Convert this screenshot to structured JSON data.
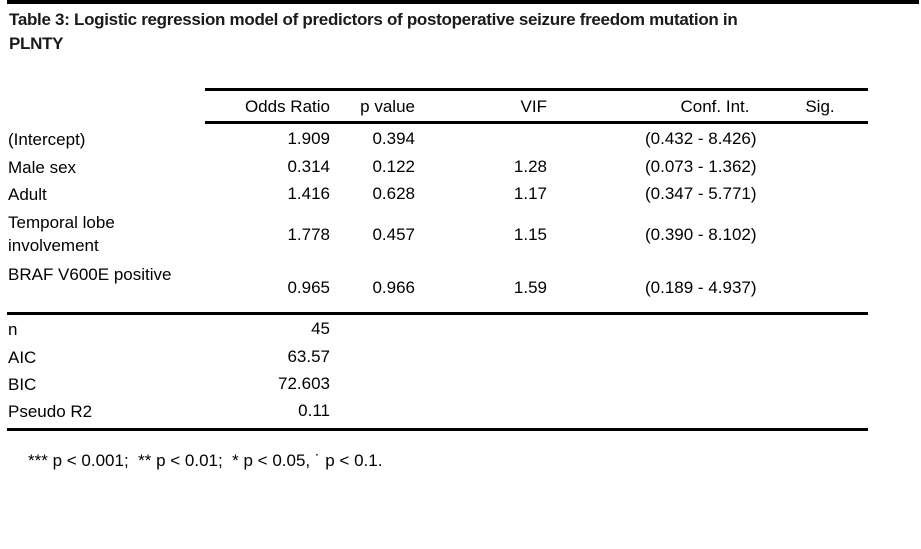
{
  "page": {
    "title_line1": "Table 3: Logistic regression model of predictors of postoperative seizure freedom mutation in",
    "title_line2": "PLNTY",
    "footnote": "*** p < 0.001;  ** p < 0.01;  * p < 0.05, ˙ p < 0.1."
  },
  "table": {
    "headers": {
      "label": "",
      "odds_ratio": "Odds Ratio",
      "p_value": "p value",
      "vif": "VIF",
      "conf_int": "Conf. Int.",
      "sig": "Sig."
    },
    "rows": [
      {
        "label": "(Intercept)",
        "odds_ratio": "1.909",
        "p_value": "0.394",
        "vif": "",
        "conf_int": "(0.432 - 8.426)",
        "sig": ""
      },
      {
        "label": "Male sex",
        "odds_ratio": "0.314",
        "p_value": "0.122",
        "vif": "1.28",
        "conf_int": "(0.073 - 1.362)",
        "sig": ""
      },
      {
        "label": "Adult",
        "odds_ratio": "1.416",
        "p_value": "0.628",
        "vif": "1.17",
        "conf_int": "(0.347 - 5.771)",
        "sig": ""
      },
      {
        "label": "Temporal lobe involvement",
        "odds_ratio": "1.778",
        "p_value": "0.457",
        "vif": "1.15",
        "conf_int": "(0.390 - 8.102)",
        "sig": ""
      },
      {
        "label": "BRAF V600E positive",
        "odds_ratio": "0.965",
        "p_value": "0.966",
        "vif": "1.59",
        "conf_int": "(0.189 - 4.937)",
        "sig": ""
      }
    ],
    "stats": [
      {
        "label": "n",
        "value": "45"
      },
      {
        "label": "AIC",
        "value": "63.57"
      },
      {
        "label": "BIC",
        "value": "72.603"
      },
      {
        "label": "Pseudo R2",
        "value": "0.11"
      }
    ]
  },
  "colors": {
    "background": "#ffffff",
    "text": "#000000",
    "rule": "#000000"
  }
}
